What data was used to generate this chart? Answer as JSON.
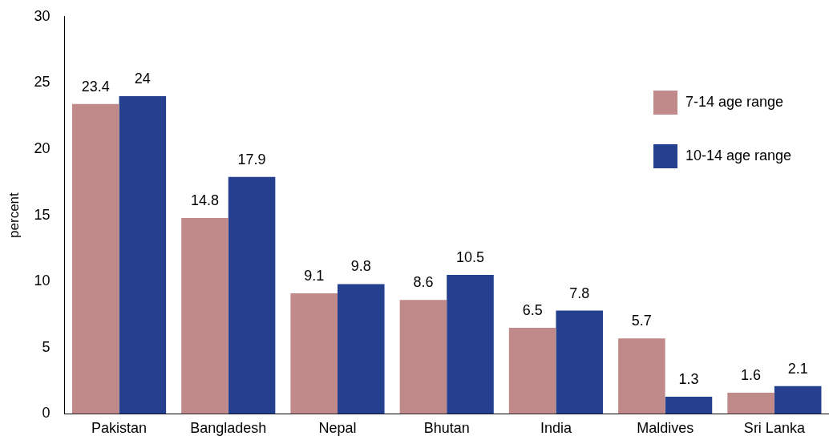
{
  "chart_data": {
    "type": "bar",
    "ylabel": "percent",
    "categories": [
      "Pakistan",
      "Bangladesh",
      "Nepal",
      "Bhutan",
      "India",
      "Maldives",
      "Sri Lanka"
    ],
    "series": [
      {
        "name": "7-14 age range",
        "color": "#c08a8a",
        "values": [
          23.4,
          14.8,
          9.1,
          8.6,
          6.5,
          5.7,
          1.6
        ]
      },
      {
        "name": "10-14 age range",
        "color": "#25408f",
        "values": [
          24,
          17.9,
          9.8,
          10.5,
          7.8,
          1.3,
          2.1
        ]
      }
    ],
    "ylim": [
      0,
      30
    ],
    "yticks": [
      0,
      5,
      10,
      15,
      20,
      25,
      30
    ],
    "grid": false,
    "legend": "top right",
    "data_labels": true
  }
}
